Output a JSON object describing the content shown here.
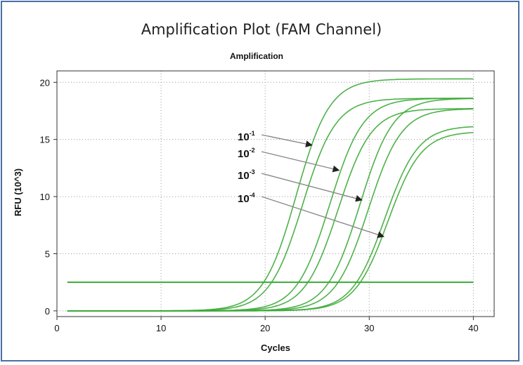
{
  "page_title": "Amplification Plot (FAM Channel)",
  "chart_data": {
    "type": "line",
    "title": "Amplification",
    "xlabel": "Cycles",
    "ylabel": "RFU (10^3)",
    "xlim": [
      0,
      42
    ],
    "ylim": [
      -0.5,
      21
    ],
    "xticks": [
      0,
      10,
      20,
      30,
      40
    ],
    "yticks": [
      0,
      5,
      10,
      15,
      20
    ],
    "grid": true,
    "line_color": "#3aaa35",
    "threshold": {
      "value": 2.5,
      "x_range": [
        1,
        40
      ]
    },
    "series": [
      {
        "midpoint": 23.0,
        "plateau": 20.3,
        "steepness": 1.6
      },
      {
        "midpoint": 23.6,
        "plateau": 18.6,
        "steepness": 1.6
      },
      {
        "midpoint": 26.2,
        "plateau": 18.6,
        "steepness": 1.6
      },
      {
        "midpoint": 27.0,
        "plateau": 17.7,
        "steepness": 1.6
      },
      {
        "midpoint": 29.1,
        "plateau": 18.6,
        "steepness": 1.6
      },
      {
        "midpoint": 29.9,
        "plateau": 17.7,
        "steepness": 1.6
      },
      {
        "midpoint": 31.5,
        "plateau": 16.2,
        "steepness": 1.6
      },
      {
        "midpoint": 31.8,
        "plateau": 15.7,
        "steepness": 1.6
      }
    ],
    "annotations": [
      {
        "base": "10",
        "exp": "-1",
        "target": [
          24.5,
          14.5
        ]
      },
      {
        "base": "10",
        "exp": "-2",
        "target": [
          27.1,
          12.3
        ]
      },
      {
        "base": "10",
        "exp": "-3",
        "target": [
          29.3,
          9.7
        ]
      },
      {
        "base": "10",
        "exp": "-4",
        "target": [
          31.4,
          6.5
        ]
      }
    ]
  }
}
